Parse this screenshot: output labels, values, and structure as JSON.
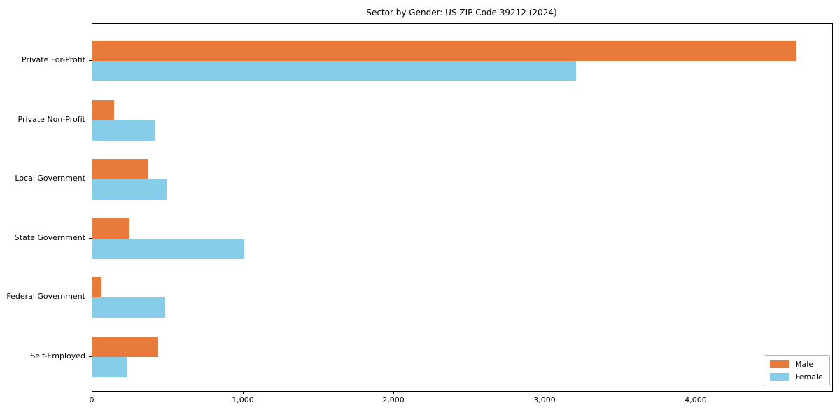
{
  "chart_data": {
    "type": "bar",
    "orientation": "horizontal",
    "title": "Sector by Gender: US ZIP Code 39212 (2024)",
    "categories": [
      "Private For-Profit",
      "Private Non-Profit",
      "Local Government",
      "State Government",
      "Federal Government",
      "Self-Employed"
    ],
    "series": [
      {
        "name": "Male",
        "color": "#e87b3b",
        "values": [
          4660,
          145,
          370,
          245,
          60,
          435
        ]
      },
      {
        "name": "Female",
        "color": "#85cde8",
        "values": [
          3205,
          415,
          490,
          1005,
          480,
          230
        ]
      }
    ],
    "xlabel": "",
    "ylabel": "",
    "xlim": [
      0,
      4900
    ],
    "xticks": [
      0,
      1000,
      2000,
      3000,
      4000
    ],
    "xtick_labels": [
      "0",
      "1,000",
      "2,000",
      "3,000",
      "4,000"
    ],
    "grid": false,
    "background_color": "#ffffff",
    "spine_color": "#000000",
    "legend": {
      "position": "lower right",
      "entries": [
        {
          "label": "Male",
          "color": "#e87b3b"
        },
        {
          "label": "Female",
          "color": "#85cde8"
        }
      ]
    }
  }
}
